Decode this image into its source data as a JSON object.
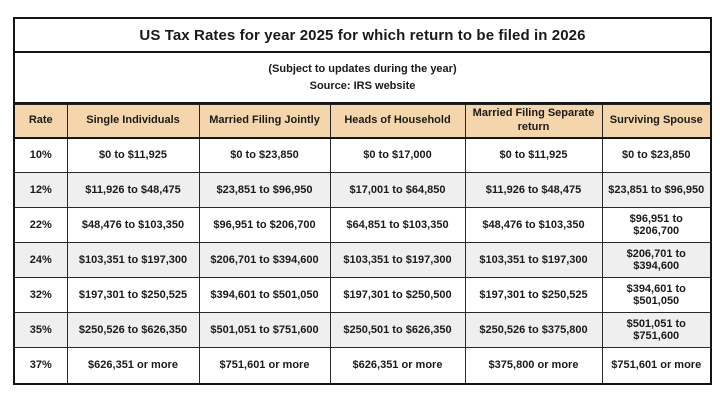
{
  "chart_data": {
    "type": "table",
    "title": "US Tax Rates for year 2025 for which return to be filed in 2026",
    "subtitle": "(Subject to updates during the year)",
    "source": "Source: IRS website",
    "headers": [
      "Rate",
      "Single Individuals",
      "Married Filing Jointly",
      "Heads of Household",
      "Married Filing Separate return",
      "Surviving Spouse"
    ],
    "rows": [
      [
        "10%",
        "$0 to $11,925",
        "$0 to $23,850",
        "$0 to $17,000",
        "$0 to $11,925",
        "$0 to $23,850"
      ],
      [
        "12%",
        "$11,926 to $48,475",
        "$23,851 to $96,950",
        "$17,001 to $64,850",
        "$11,926 to $48,475",
        "$23,851 to $96,950"
      ],
      [
        "22%",
        "$48,476 to $103,350",
        "$96,951 to $206,700",
        "$64,851 to $103,350",
        "$48,476 to $103,350",
        "$96,951 to $206,700"
      ],
      [
        "24%",
        "$103,351 to $197,300",
        "$206,701 to $394,600",
        "$103,351 to $197,300",
        "$103,351 to $197,300",
        "$206,701 to $394,600"
      ],
      [
        "32%",
        "$197,301 to $250,525",
        "$394,601 to $501,050",
        "$197,301 to $250,500",
        "$197,301 to $250,525",
        "$394,601 to $501,050"
      ],
      [
        "35%",
        "$250,526 to $626,350",
        "$501,051 to $751,600",
        "$250,501 to $626,350",
        "$250,526 to $375,800",
        "$501,051 to $751,600"
      ],
      [
        "37%",
        "$626,351 or more",
        "$751,601 or more",
        "$626,351 or more",
        "$375,800 or more",
        "$751,601 or more"
      ]
    ],
    "layout_hints": {
      "header_bg": "#F5D6AC",
      "alt_row_bg": "#EFEFEF",
      "border_color": "#151515",
      "grid": true
    }
  }
}
